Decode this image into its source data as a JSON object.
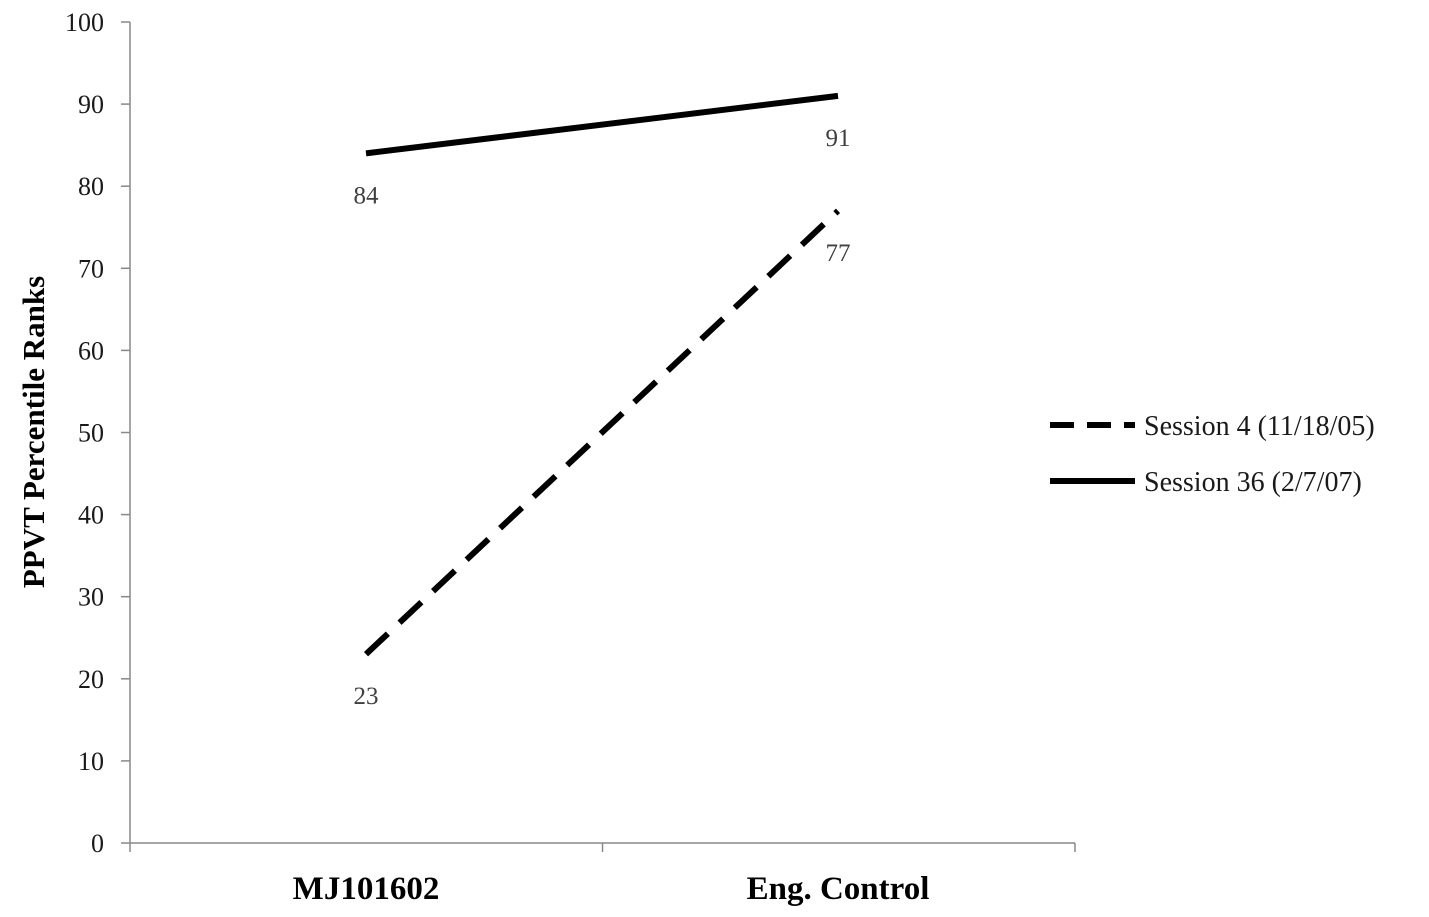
{
  "chart_data": {
    "type": "line",
    "title": "",
    "xlabel": "",
    "ylabel": "PPVT Percentile Ranks",
    "ylim": [
      0,
      100
    ],
    "yticks": [
      0,
      10,
      20,
      30,
      40,
      50,
      60,
      70,
      80,
      90,
      100
    ],
    "categories": [
      "MJ101602",
      "Eng. Control"
    ],
    "series": [
      {
        "name": "Session 4 (11/18/05)",
        "values": [
          23,
          77
        ],
        "style": "dashed",
        "color": "#000000"
      },
      {
        "name": "Session 36 (2/7/07)",
        "values": [
          84,
          91
        ],
        "style": "solid",
        "color": "#000000"
      }
    ],
    "data_labels": true,
    "grid": false,
    "legend_position": "right"
  }
}
